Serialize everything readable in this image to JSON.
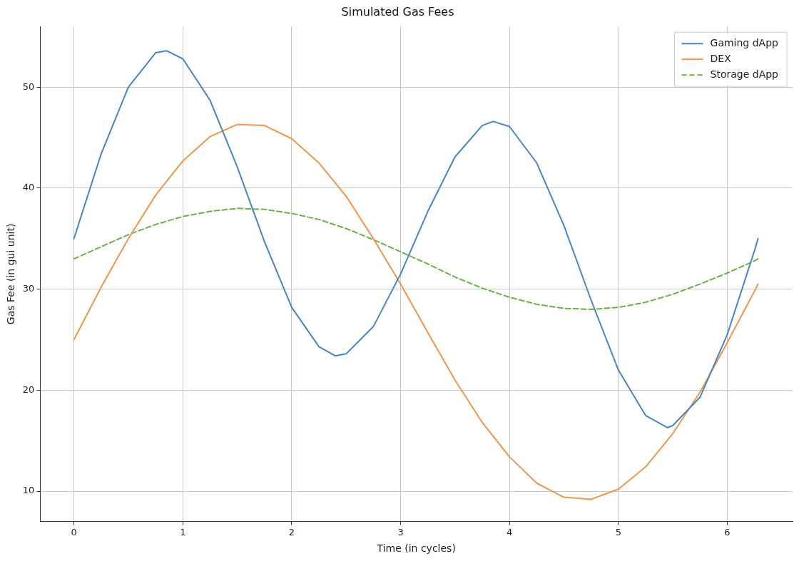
{
  "chart_data": {
    "type": "line",
    "title": "Simulated Gas Fees",
    "xlabel": "Time (in cycles)",
    "ylabel": "Gas Fee (in gui unit)",
    "xlim": [
      -0.31,
      6.6
    ],
    "ylim": [
      7.0,
      56.0
    ],
    "xticks": [
      0,
      1,
      2,
      3,
      4,
      5,
      6
    ],
    "yticks": [
      10,
      20,
      30,
      40,
      50
    ],
    "grid": true,
    "legend": "top right",
    "series": [
      {
        "name": "Gaming dApp",
        "color": "#4a84c0",
        "line_style": "solid",
        "x": [
          0,
          0.25,
          0.5,
          0.75,
          0.85,
          1,
          1.25,
          1.5,
          1.75,
          2,
          2.25,
          2.4,
          2.5,
          2.75,
          3,
          3.25,
          3.5,
          3.75,
          3.85,
          4,
          4.25,
          4.5,
          4.75,
          5,
          5.25,
          5.45,
          5.5,
          5.75,
          6,
          6.25,
          6.283
        ],
        "values": [
          35,
          43.4,
          50.0,
          53.4,
          53.6,
          52.8,
          48.7,
          42.1,
          34.7,
          28.2,
          24.3,
          23.4,
          23.6,
          26.3,
          31.5,
          37.7,
          43.1,
          46.2,
          46.6,
          46.1,
          42.5,
          36.3,
          28.9,
          22.0,
          17.5,
          16.3,
          16.5,
          19.3,
          25.5,
          33.8,
          35
        ]
      },
      {
        "name": "DEX",
        "color": "#f0954a",
        "line_style": "solid",
        "x": [
          0,
          0.25,
          0.5,
          0.75,
          1,
          1.25,
          1.5,
          1.75,
          2,
          2.25,
          2.5,
          2.75,
          3,
          3.25,
          3.5,
          3.75,
          4,
          4.25,
          4.5,
          4.75,
          5,
          5.25,
          5.5,
          5.75,
          6,
          6.25,
          6.283
        ],
        "values": [
          25,
          30.2,
          35.0,
          39.3,
          42.7,
          45.1,
          46.3,
          46.2,
          44.9,
          42.5,
          39.2,
          35.0,
          30.5,
          25.7,
          21.0,
          16.8,
          13.4,
          10.8,
          9.4,
          9.2,
          10.2,
          12.4,
          15.7,
          19.8,
          24.7,
          29.8,
          30.5
        ]
      },
      {
        "name": "Storage dApp",
        "color": "#6ab04c",
        "line_style": "dashed",
        "x": [
          0,
          0.25,
          0.5,
          0.75,
          1,
          1.25,
          1.5,
          1.75,
          2,
          2.25,
          2.5,
          2.75,
          3,
          3.25,
          3.5,
          3.75,
          4,
          4.25,
          4.5,
          4.75,
          5,
          5.25,
          5.5,
          5.75,
          6,
          6.25,
          6.283
        ],
        "values": [
          33,
          34.2,
          35.4,
          36.4,
          37.2,
          37.7,
          38.0,
          37.9,
          37.5,
          36.9,
          36.0,
          34.9,
          33.7,
          32.5,
          31.2,
          30.1,
          29.2,
          28.5,
          28.1,
          28.0,
          28.2,
          28.7,
          29.5,
          30.5,
          31.6,
          32.8,
          33.0
        ]
      }
    ]
  }
}
